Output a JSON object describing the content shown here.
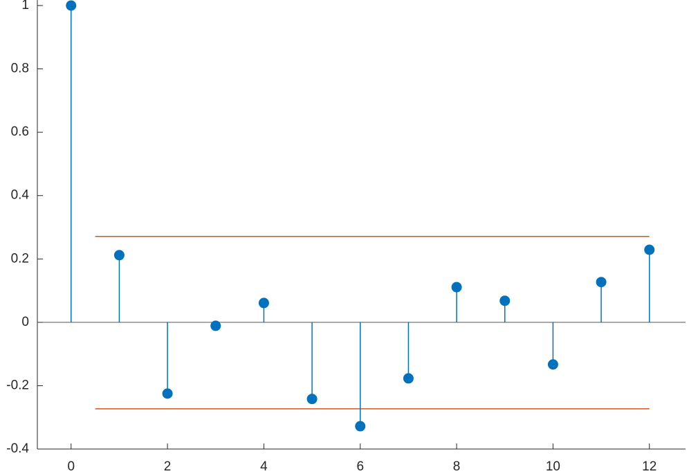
{
  "chart_data": {
    "type": "stem",
    "x": [
      0,
      1,
      2,
      3,
      4,
      5,
      6,
      7,
      8,
      9,
      10,
      11,
      12
    ],
    "values": [
      1,
      0.212,
      -0.225,
      -0.011,
      0.061,
      -0.242,
      -0.328,
      -0.177,
      0.111,
      0.068,
      -0.133,
      0.127,
      0.229
    ],
    "color": "#0072bd",
    "reference_lines": [
      {
        "y": 0.271,
        "x": [
          0.5,
          12
        ],
        "color": "#d95319"
      },
      {
        "y": -0.273,
        "x": [
          0.5,
          12
        ],
        "color": "#d95319"
      }
    ],
    "xlim": [
      -0.7,
      12.75
    ],
    "xticks": [
      0,
      2,
      4,
      6,
      8,
      10,
      12
    ],
    "ylim": [
      -0.4,
      1
    ],
    "yticks": [
      -0.4,
      -0.2,
      0,
      0.2,
      0.4,
      0.6,
      0.8,
      1
    ]
  }
}
